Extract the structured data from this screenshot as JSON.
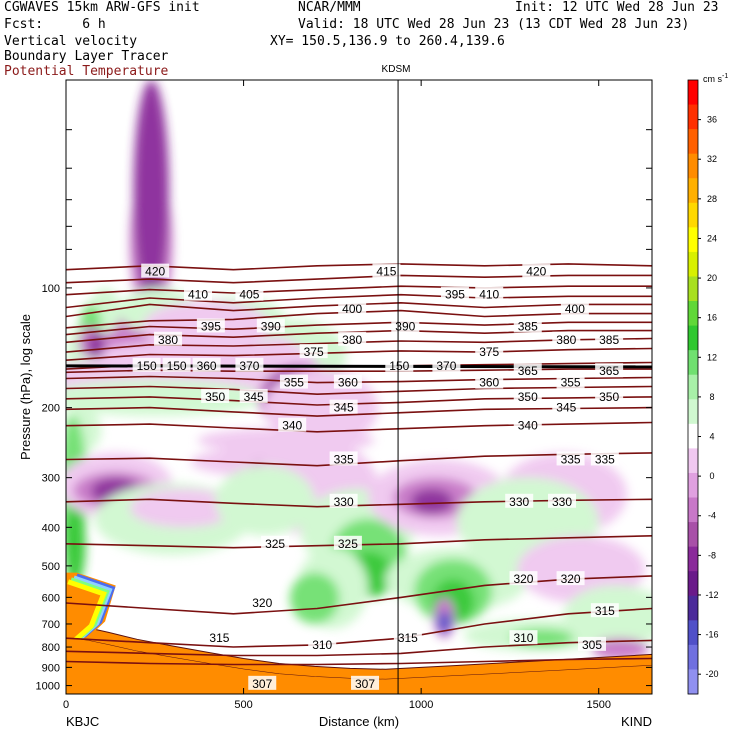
{
  "header": {
    "line1_left": "CGWAVES 15km ARW-GFS init",
    "line1_center": "NCAR/MMM",
    "line1_right": "Init: 12 UTC Wed 28 Jun 23",
    "fcst": "Fcst:     6 h",
    "valid": "Valid: 18 UTC Wed 28 Jun 23 (13 CDT Wed 28 Jun 23)",
    "xy": "XY= 150.5,136.9 to 260.4,139.6",
    "field1": "Vertical velocity",
    "field2": "Boundary Layer Tracer",
    "field3": "Potential Temperature"
  },
  "colors": {
    "theta": "#7a1010",
    "field3_text": "#8b1a1a"
  },
  "chart_data": {
    "type": "cross-section",
    "station_marker": "KDSM",
    "xlabel": "Distance (km)",
    "ylabel": "Pressure (hPa), log scale",
    "x_ticks": [
      "0",
      "500",
      "1000",
      "1500"
    ],
    "x_tick_values": [
      0,
      500,
      1000,
      1500
    ],
    "xlim": [
      0,
      1650
    ],
    "station_x_km": 935,
    "endpoints": {
      "left": "KBJC",
      "right": "KIND"
    },
    "y_ticks": [
      "100",
      "200",
      "300",
      "400",
      "500",
      "600",
      "700",
      "800",
      "900",
      "1000"
    ],
    "y_tick_values": [
      100,
      200,
      300,
      400,
      500,
      600,
      700,
      800,
      900,
      1000
    ],
    "ylim": [
      30,
      1050
    ],
    "colorbar": {
      "unit": "cm s",
      "unit_sup": "-1",
      "labels": [
        "36",
        "32",
        "28",
        "24",
        "20",
        "16",
        "12",
        "8",
        "4",
        "0",
        "-4",
        "-8",
        "-12",
        "-16",
        "-20"
      ],
      "label_values": [
        36,
        32,
        28,
        24,
        20,
        16,
        12,
        8,
        4,
        0,
        -4,
        -8,
        -12,
        -16,
        -20
      ],
      "colors": [
        "#ff0000",
        "#ff3000",
        "#ff6000",
        "#ff8c00",
        "#ffb000",
        "#ffd800",
        "#ffff00",
        "#d8f000",
        "#a8e020",
        "#60d838",
        "#30c830",
        "#70e070",
        "#a8f0a8",
        "#d0f8d0",
        "#ffffff",
        "#f0c8f0",
        "#e0a0e0",
        "#c878c8",
        "#a850a8",
        "#8a2a9a",
        "#6a1a8a",
        "#4b2a9a",
        "#5050c8",
        "#7070e0",
        "#9090f0"
      ]
    },
    "potential_temperature_K": [
      {
        "label": "420",
        "p": [
          90,
          88,
          90,
          88,
          87,
          88,
          87,
          88
        ]
      },
      {
        "label": "415",
        "p": [
          97,
          95,
          97,
          95,
          93,
          94,
          93,
          93
        ]
      },
      {
        "label": "410",
        "p": [
          104,
          101,
          103,
          101,
          99,
          100,
          99,
          99
        ]
      },
      {
        "label": "405",
        "p": [
          112,
          106,
          109,
          106,
          104,
          106,
          105,
          105
        ]
      },
      {
        "label": "400",
        "p": [
          118,
          110,
          114,
          111,
          109,
          112,
          110,
          110
        ]
      },
      {
        "label": "395",
        "p": [
          126,
          121,
          120,
          116,
          114,
          118,
          116,
          116
        ]
      },
      {
        "label": "390",
        "p": [
          131,
          125,
          127,
          124,
          122,
          124,
          122,
          122
        ]
      },
      {
        "label": "385",
        "p": [
          137,
          131,
          133,
          130,
          128,
          130,
          128,
          128
        ]
      },
      {
        "label": "380",
        "p": [
          145,
          139,
          140,
          138,
          136,
          137,
          135,
          134
        ]
      },
      {
        "label": "375",
        "p": [
          152,
          147,
          148,
          146,
          144,
          145,
          143,
          142
        ]
      },
      {
        "label": "370",
        "p": [
          160,
          156,
          157,
          157,
          157,
          156,
          155,
          154
        ]
      },
      {
        "label": "365",
        "p": [
          163,
          161,
          162,
          162,
          162,
          161,
          160,
          160
        ]
      },
      {
        "label": "360",
        "p": [
          169,
          167,
          169,
          173,
          172,
          170,
          169,
          168
        ]
      },
      {
        "label": "355",
        "p": [
          179,
          177,
          180,
          185,
          182,
          179,
          178,
          177
        ]
      },
      {
        "label": "350",
        "p": [
          190,
          188,
          192,
          197,
          194,
          190,
          189,
          188
        ]
      },
      {
        "label": "345",
        "p": [
          202,
          200,
          205,
          210,
          206,
          202,
          201,
          200
        ]
      },
      {
        "label": "340",
        "p": [
          222,
          220,
          225,
          230,
          226,
          222,
          220,
          218
        ]
      },
      {
        "label": "335",
        "p": [
          270,
          268,
          274,
          280,
          272,
          265,
          262,
          260
        ]
      },
      {
        "label": "330",
        "p": [
          345,
          340,
          348,
          355,
          350,
          345,
          342,
          340
        ]
      },
      {
        "label": "325",
        "p": [
          440,
          445,
          450,
          445,
          440,
          430,
          425,
          420
        ]
      },
      {
        "label": "320",
        "p": [
          620,
          640,
          660,
          640,
          600,
          560,
          540,
          530
        ]
      },
      {
        "label": "315",
        "p": [
          760,
          780,
          800,
          790,
          760,
          700,
          660,
          640
        ]
      },
      {
        "label": "310",
        "p": [
          820,
          830,
          840,
          840,
          830,
          800,
          780,
          770
        ]
      },
      {
        "label": "305",
        "p": [
          870,
          880,
          885,
          885,
          880,
          870,
          860,
          855
        ]
      }
    ],
    "theta_label_rows": [
      {
        "p": 91,
        "items": [
          [
            "420",
            100
          ],
          [
            "415",
            370
          ],
          [
            "420",
            545
          ]
        ]
      },
      {
        "p": 104,
        "items": [
          [
            "410",
            150
          ],
          [
            "405",
            210
          ],
          [
            "395",
            450
          ],
          [
            "410",
            490
          ]
        ]
      },
      {
        "p": 113,
        "items": [
          [
            "400",
            330
          ],
          [
            "400",
            590
          ]
        ]
      },
      {
        "p": 125,
        "items": [
          [
            "395",
            165
          ],
          [
            "390",
            235
          ],
          [
            "390",
            392
          ],
          [
            "385",
            535
          ]
        ]
      },
      {
        "p": 135,
        "items": [
          [
            "380",
            115
          ],
          [
            "380",
            330
          ],
          [
            "380",
            580
          ],
          [
            "385",
            630
          ]
        ]
      },
      {
        "p": 145,
        "items": [
          [
            "375",
            285
          ],
          [
            "375",
            490
          ]
        ]
      },
      {
        "p": 157,
        "items": [
          [
            "150",
            90
          ],
          [
            "150",
            125
          ],
          [
            "360",
            160
          ],
          [
            "370",
            210
          ],
          [
            "150",
            385
          ],
          [
            "370",
            440
          ]
        ]
      },
      {
        "p": 162,
        "items": [
          [
            "365",
            535
          ],
          [
            "365",
            630
          ]
        ]
      },
      {
        "p": 173,
        "items": [
          [
            "355",
            262
          ],
          [
            "360",
            325
          ],
          [
            "360",
            490
          ],
          [
            "355",
            585
          ]
        ]
      },
      {
        "p": 188,
        "items": [
          [
            "350",
            170
          ],
          [
            "345",
            215
          ],
          [
            "350",
            535
          ],
          [
            "350",
            630
          ]
        ]
      },
      {
        "p": 200,
        "items": [
          [
            "345",
            320
          ],
          [
            "345",
            580
          ]
        ]
      },
      {
        "p": 222,
        "items": [
          [
            "340",
            260
          ],
          [
            "340",
            535
          ]
        ]
      },
      {
        "p": 270,
        "items": [
          [
            "335",
            320
          ],
          [
            "335",
            585
          ],
          [
            "335",
            625
          ]
        ]
      },
      {
        "p": 345,
        "items": [
          [
            "330",
            320
          ],
          [
            "330",
            525
          ],
          [
            "330",
            575
          ]
        ]
      },
      {
        "p": 440,
        "items": [
          [
            "325",
            240
          ],
          [
            "325",
            325
          ]
        ]
      },
      {
        "p": 540,
        "items": [
          [
            "320",
            530
          ],
          [
            "320",
            585
          ]
        ]
      },
      {
        "p": 620,
        "items": [
          [
            "320",
            225
          ]
        ]
      },
      {
        "p": 650,
        "items": [
          [
            "315",
            625
          ]
        ]
      },
      {
        "p": 760,
        "items": [
          [
            "315",
            175
          ],
          [
            "315",
            395
          ],
          [
            "310",
            530
          ]
        ]
      },
      {
        "p": 790,
        "items": [
          [
            "310",
            295
          ],
          [
            "305",
            610
          ]
        ]
      },
      {
        "p": 990,
        "items": [
          [
            "307",
            225
          ],
          [
            "307",
            345
          ]
        ]
      }
    ],
    "terrain_pressure_hPa": [
      [
        0,
        760
      ],
      [
        60,
        770
      ],
      [
        120,
        790
      ],
      [
        200,
        820
      ],
      [
        300,
        850
      ],
      [
        400,
        880
      ],
      [
        500,
        910
      ],
      [
        600,
        935
      ],
      [
        700,
        950
      ],
      [
        800,
        960
      ],
      [
        900,
        965
      ],
      [
        1000,
        955
      ],
      [
        1100,
        945
      ],
      [
        1200,
        935
      ],
      [
        1300,
        925
      ],
      [
        1400,
        915
      ],
      [
        1500,
        905
      ],
      [
        1600,
        895
      ],
      [
        1650,
        890
      ]
    ]
  }
}
